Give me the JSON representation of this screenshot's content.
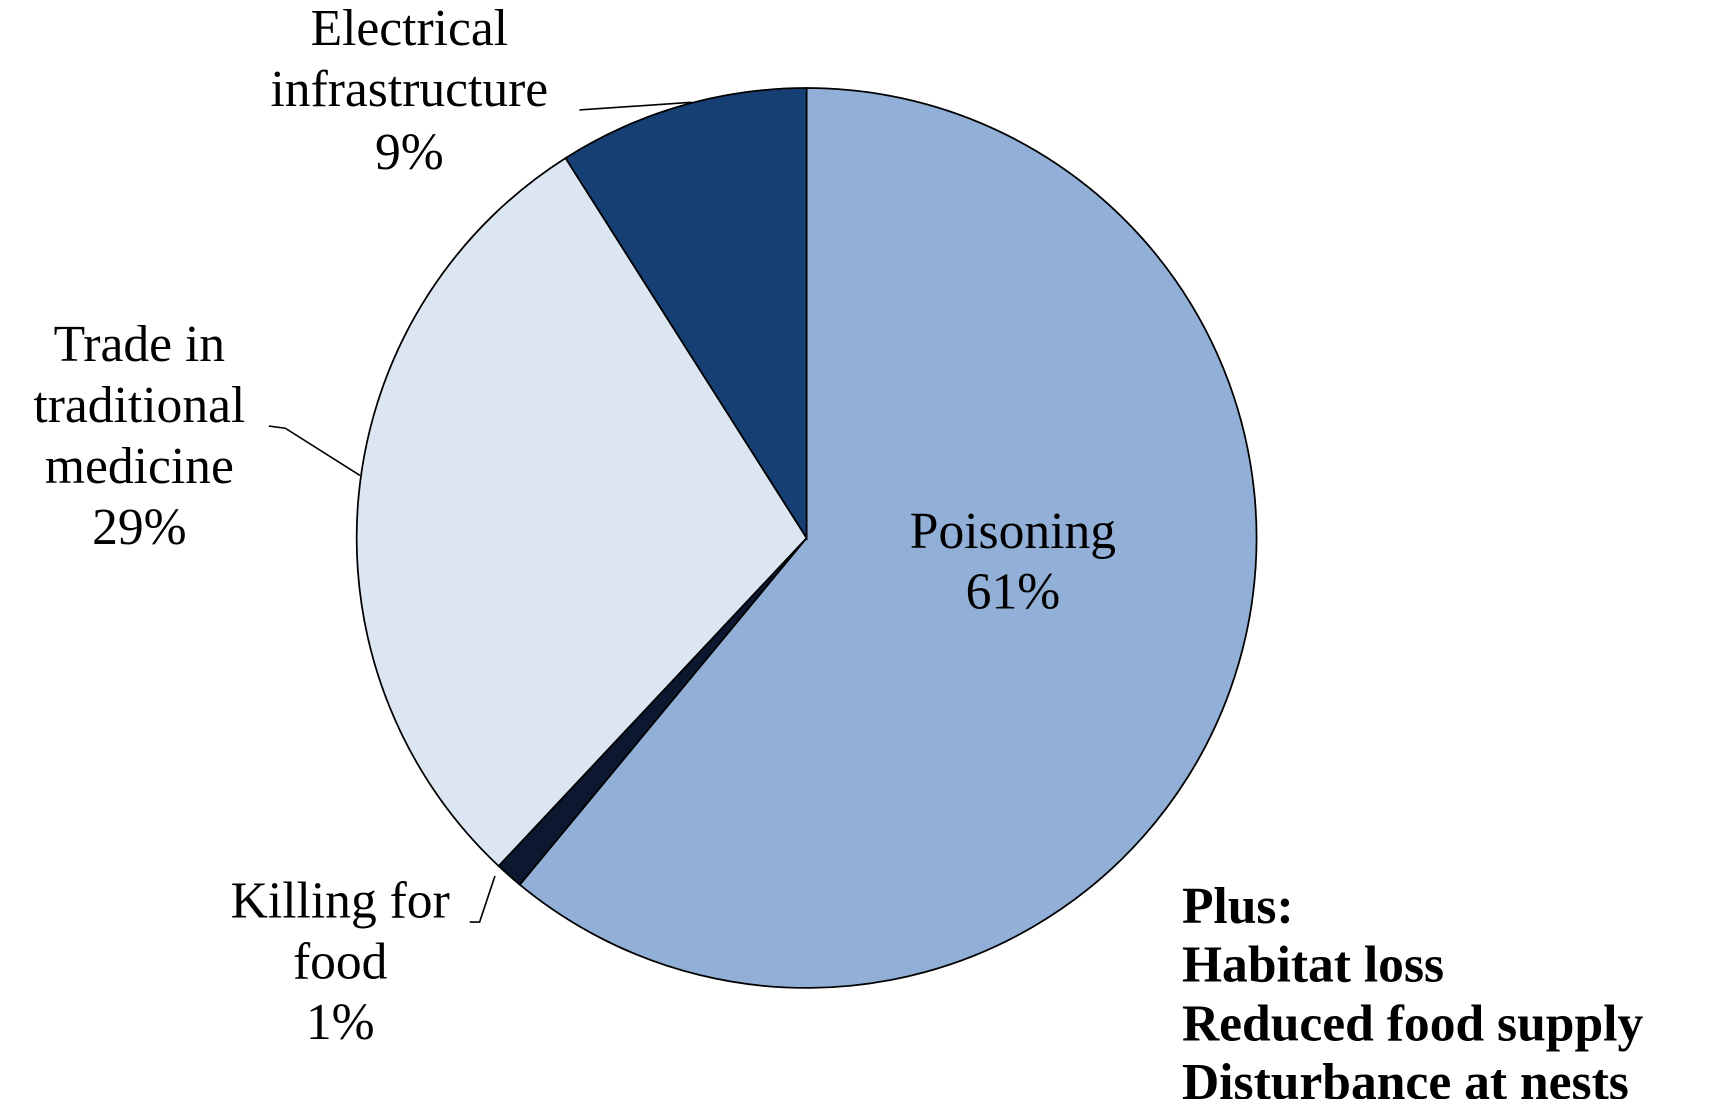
{
  "chart_data": {
    "type": "pie",
    "categories": [
      "Poisoning",
      "Killing for food",
      "Trade in traditional medicine",
      "Electrical infrastructure"
    ],
    "values": [
      61,
      1,
      29,
      9
    ],
    "value_labels": [
      "61%",
      "1%",
      "29%",
      "9%"
    ],
    "colors": [
      "#92b0d7",
      "#0b1830",
      "#dce6f2",
      "#163f73"
    ],
    "annotations": [
      "Plus:",
      "Habitat loss",
      "Reduced food supply",
      "Disturbance at nests"
    ]
  }
}
